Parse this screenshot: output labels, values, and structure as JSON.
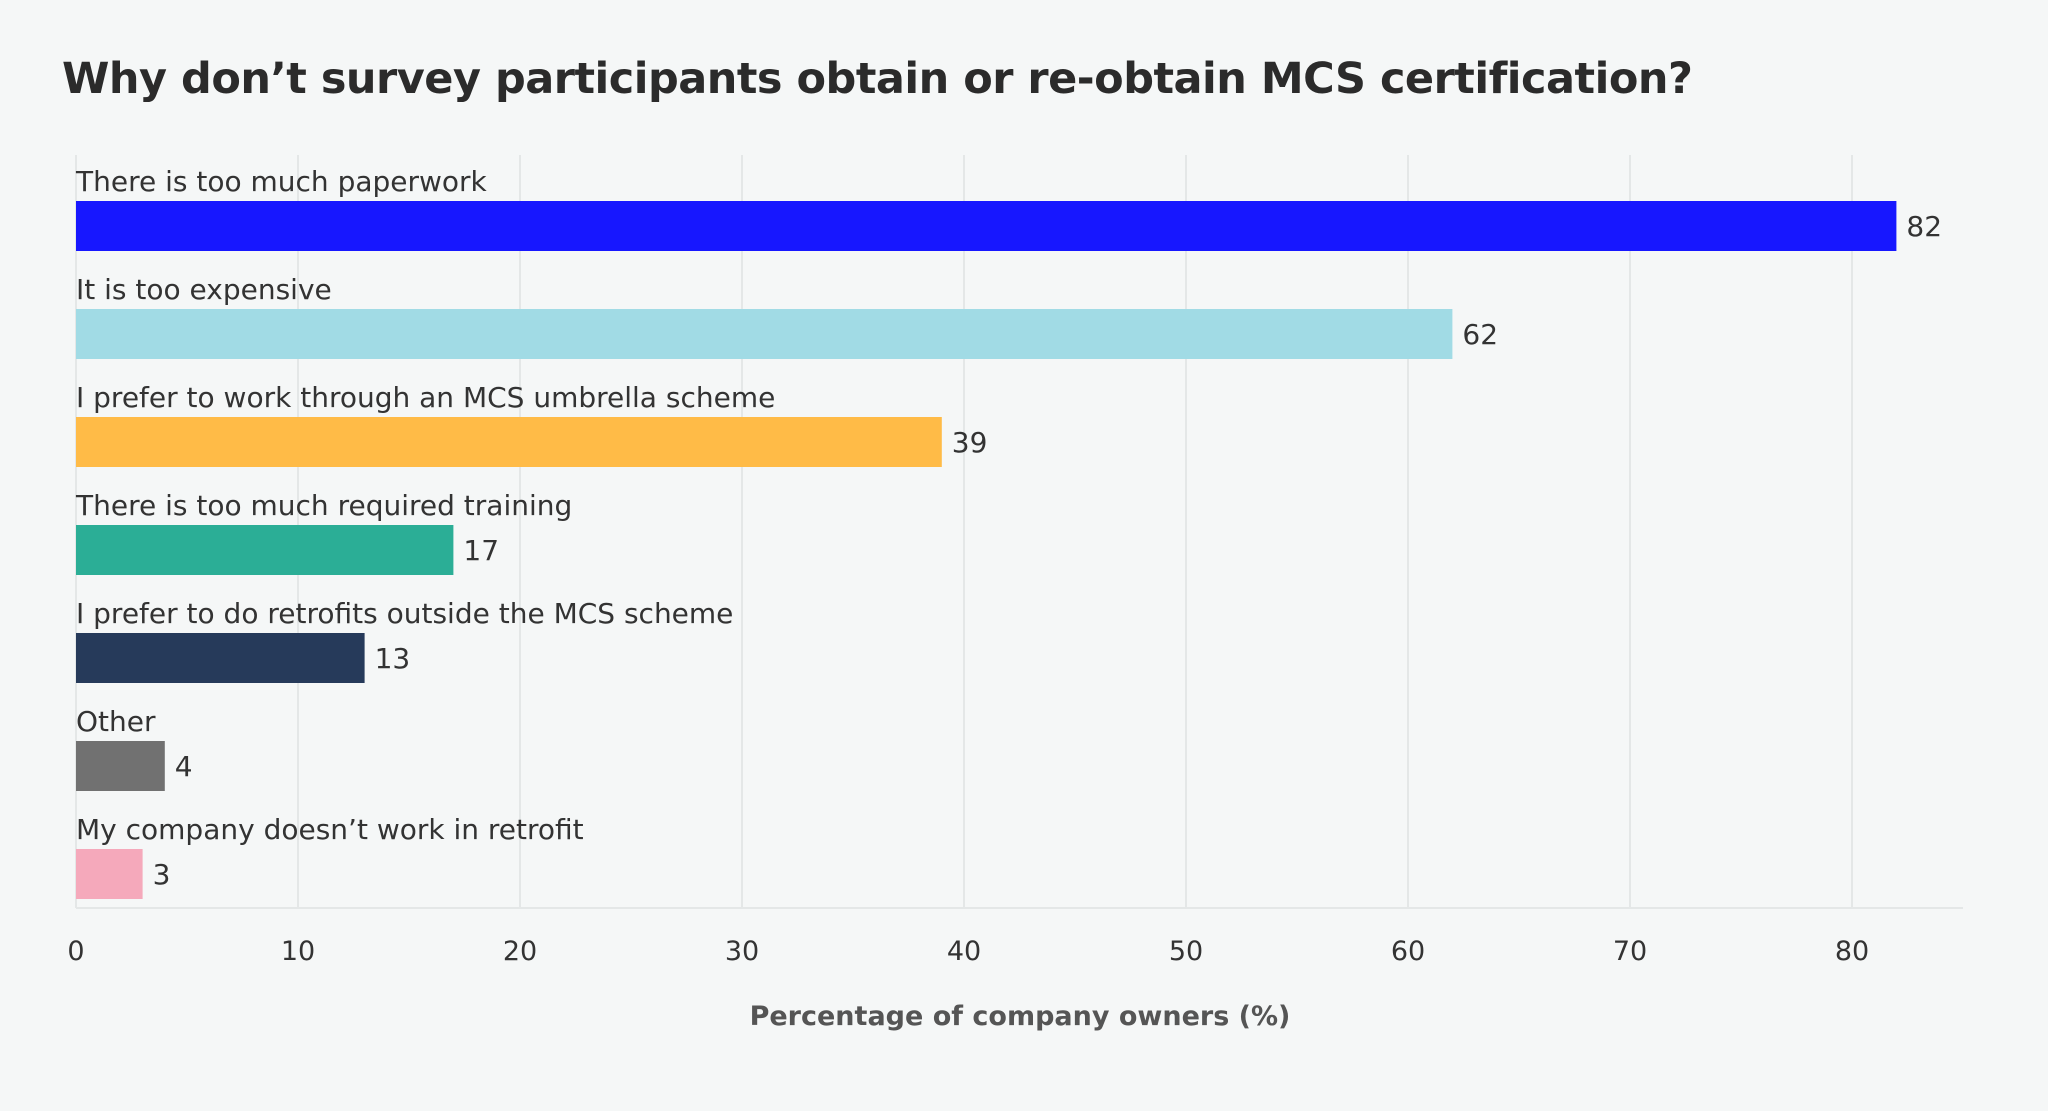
{
  "chart_data": {
    "type": "bar",
    "orientation": "horizontal",
    "title": "Why don’t survey participants obtain or re-obtain MCS certification?",
    "xlabel": "Percentage of company owners (%)",
    "ylabel": "",
    "xlim": [
      0,
      85
    ],
    "x_ticks": [
      "0",
      "10",
      "20",
      "30",
      "40",
      "50",
      "60",
      "70",
      "80"
    ],
    "grid": true,
    "legend": "none",
    "categories": [
      "There is too much paperwork",
      "It is too expensive",
      "I prefer to work through an MCS umbrella scheme",
      "There is too much required training",
      "I prefer to do retrofits outside the MCS scheme",
      "Other",
      "My company doesn’t work in retrofit"
    ],
    "values": [
      82,
      62,
      39,
      17,
      13,
      4,
      3
    ],
    "data_labels": [
      "82",
      "62",
      "39",
      "17",
      "13",
      "4",
      "3"
    ],
    "colors": [
      "#1717ff",
      "#a1dbe5",
      "#ffbb47",
      "#2bae96",
      "#263a5a",
      "#717171",
      "#f5a9bb"
    ]
  }
}
